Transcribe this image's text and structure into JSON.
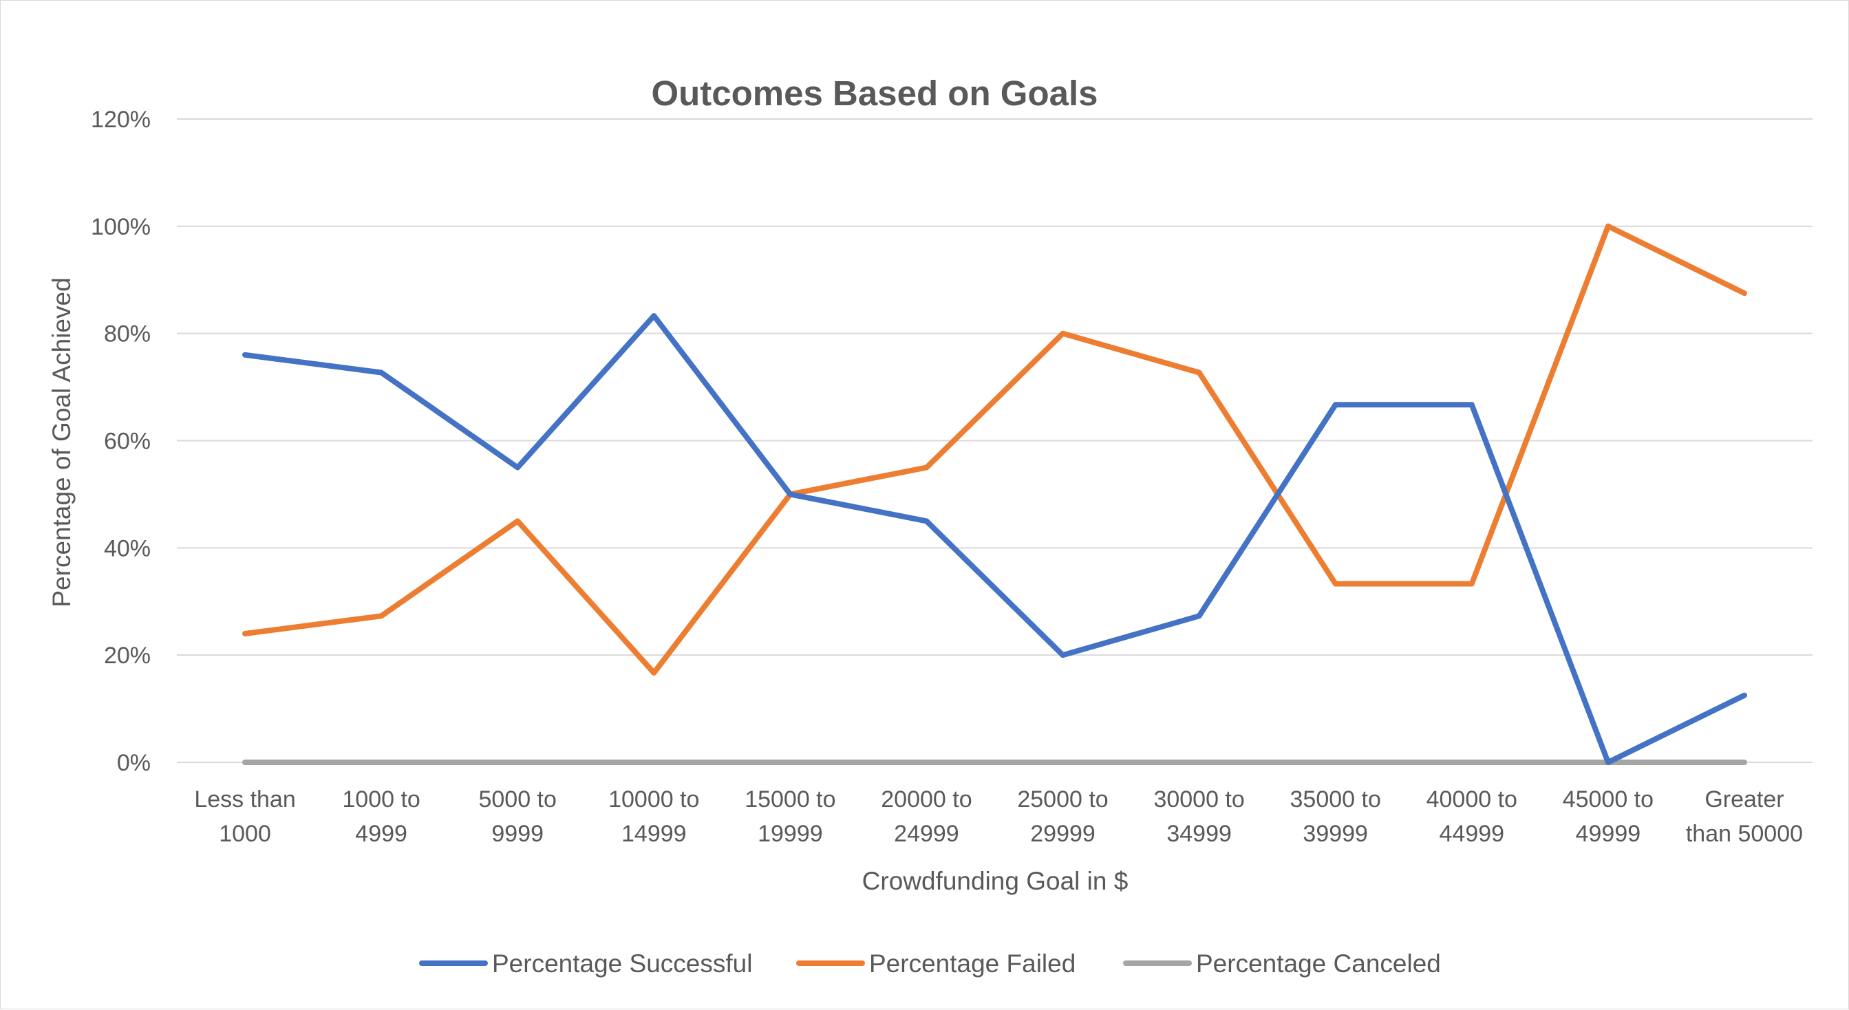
{
  "chart_data": {
    "type": "line",
    "title": "Outcomes Based on Goals",
    "xlabel": "Crowdfunding Goal in $",
    "ylabel": "Percentage of Goal Achieved",
    "ylim": [
      0,
      120
    ],
    "ytick_step": 20,
    "ytick_format": "percent",
    "grid": true,
    "legend_position": "bottom",
    "categories": [
      [
        "Less than",
        "1000"
      ],
      [
        "1000 to",
        "4999"
      ],
      [
        "5000 to",
        "9999"
      ],
      [
        "10000 to",
        "14999"
      ],
      [
        "15000 to",
        "19999"
      ],
      [
        "20000 to",
        "24999"
      ],
      [
        "25000 to",
        "29999"
      ],
      [
        "30000 to",
        "34999"
      ],
      [
        "35000 to",
        "39999"
      ],
      [
        "40000 to",
        "44999"
      ],
      [
        "45000 to",
        "49999"
      ],
      [
        "Greater",
        "than 50000"
      ]
    ],
    "series": [
      {
        "name": "Percentage Successful",
        "color": "#4472C4",
        "values": [
          76,
          72.7,
          55,
          83.3,
          50,
          45,
          20,
          27.3,
          66.7,
          66.7,
          0,
          12.5
        ]
      },
      {
        "name": "Percentage Failed",
        "color": "#ED7D31",
        "values": [
          24,
          27.3,
          45,
          16.7,
          50,
          55,
          80,
          72.7,
          33.3,
          33.3,
          100,
          87.5
        ]
      },
      {
        "name": "Percentage Canceled",
        "color": "#A5A5A5",
        "values": [
          0,
          0,
          0,
          0,
          0,
          0,
          0,
          0,
          0,
          0,
          0,
          0
        ]
      }
    ]
  }
}
